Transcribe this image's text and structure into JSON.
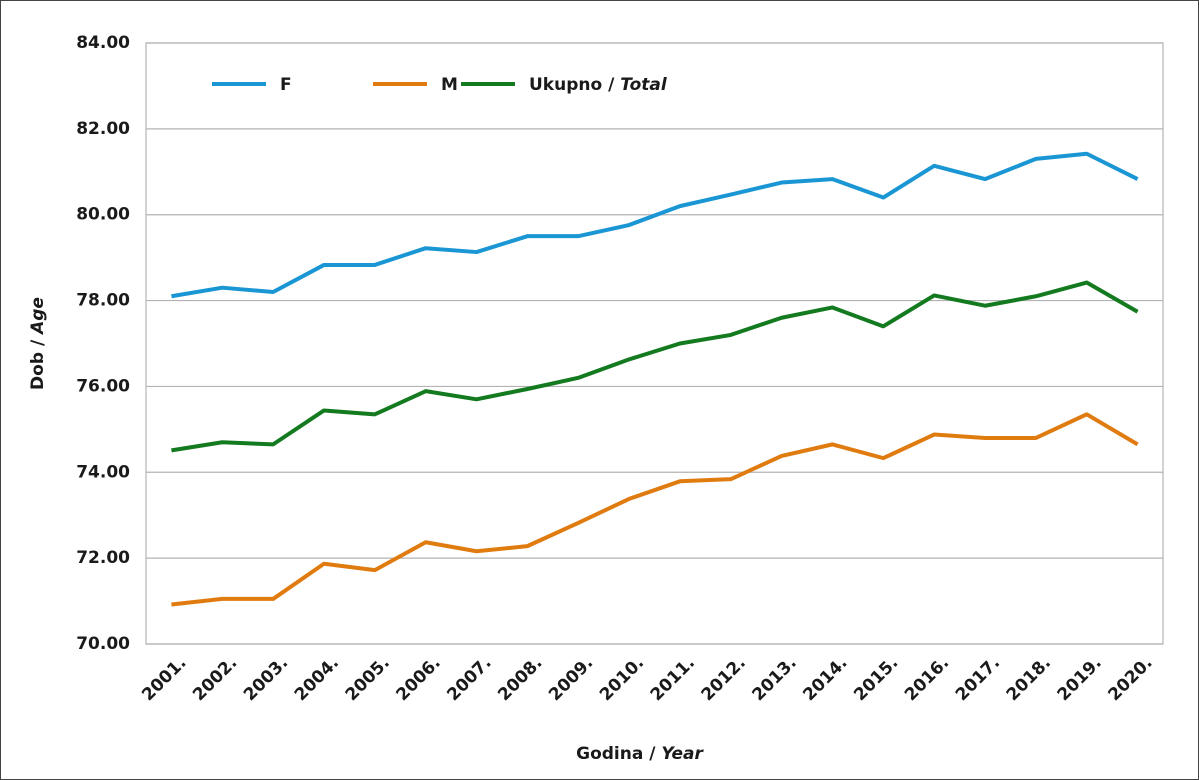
{
  "chart_data": {
    "type": "line",
    "x_label": "Godina / Year",
    "y_label": "Dob / Age",
    "categories": [
      "2001.",
      "2002.",
      "2003.",
      "2004.",
      "2005.",
      "2006.",
      "2007.",
      "2008.",
      "2009.",
      "2010.",
      "2011.",
      "2012.",
      "2013.",
      "2014.",
      "2015.",
      "2016.",
      "2017.",
      "2018.",
      "2019.",
      "2020."
    ],
    "series": [
      {
        "name": "F",
        "color": "#1a96d4",
        "values": [
          78.1,
          78.3,
          78.2,
          78.83,
          78.83,
          79.22,
          79.13,
          79.5,
          79.5,
          79.76,
          80.2,
          80.47,
          80.75,
          80.83,
          80.4,
          81.14,
          80.83,
          81.3,
          81.42,
          80.83
        ]
      },
      {
        "name": "M",
        "color": "#e07b10",
        "values": [
          70.92,
          71.05,
          71.05,
          71.87,
          71.72,
          72.37,
          72.16,
          72.28,
          72.82,
          73.38,
          73.79,
          73.84,
          74.38,
          74.65,
          74.33,
          74.88,
          74.8,
          74.8,
          75.35,
          74.65
        ]
      },
      {
        "name": "Ukupno / Total",
        "color": "#137a1f",
        "values": [
          74.51,
          74.7,
          74.65,
          75.44,
          75.35,
          75.89,
          75.7,
          75.94,
          76.2,
          76.63,
          77.0,
          77.2,
          77.6,
          77.84,
          77.4,
          78.12,
          77.88,
          78.1,
          78.42,
          77.74
        ]
      }
    ],
    "ylim": [
      70,
      84
    ],
    "yticks": [
      {
        "value": 70,
        "label": "70.00"
      },
      {
        "value": 72,
        "label": "72.00"
      },
      {
        "value": 74,
        "label": "74.00"
      },
      {
        "value": 76,
        "label": "76.00"
      },
      {
        "value": 78,
        "label": "78.00"
      },
      {
        "value": 80,
        "label": "80.00"
      },
      {
        "value": 82,
        "label": "82.00"
      },
      {
        "value": 84,
        "label": "84.00"
      }
    ],
    "grid": true,
    "legend": "top-left"
  }
}
